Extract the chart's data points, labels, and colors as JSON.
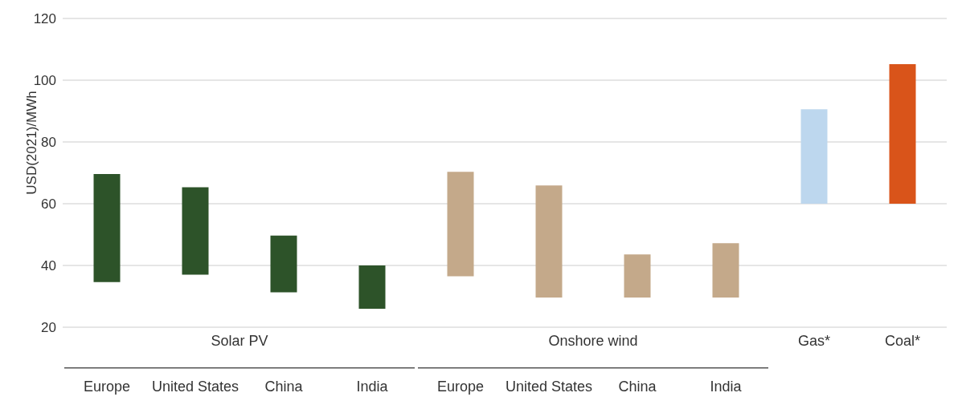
{
  "chart_data": {
    "type": "bar",
    "ylabel": "USD(2021)/MWh",
    "categories": [
      "Europe",
      "United States",
      "China",
      "India",
      "Europe",
      "United States",
      "China",
      "India",
      "Gas*",
      "Coal*"
    ],
    "base": [
      34.6,
      37,
      31.3,
      26,
      36.5,
      29.6,
      29.6,
      29.6,
      60,
      60
    ],
    "values": [
      35,
      28.3,
      18.4,
      14,
      33.8,
      36.3,
      14,
      17.6,
      30.6,
      45.2
    ],
    "colors": [
      "#2d5329",
      "#2d5329",
      "#2d5329",
      "#2d5329",
      "#c4a98a",
      "#c4a98a",
      "#c4a98a",
      "#c4a98a",
      "#bdd7ee",
      "#d9541a"
    ],
    "ylim": [
      20,
      120
    ],
    "yticks": [
      20,
      40,
      60,
      80,
      100,
      120
    ],
    "grid": "y",
    "annotations": [
      "Solar PV",
      "Onshore wind"
    ]
  }
}
